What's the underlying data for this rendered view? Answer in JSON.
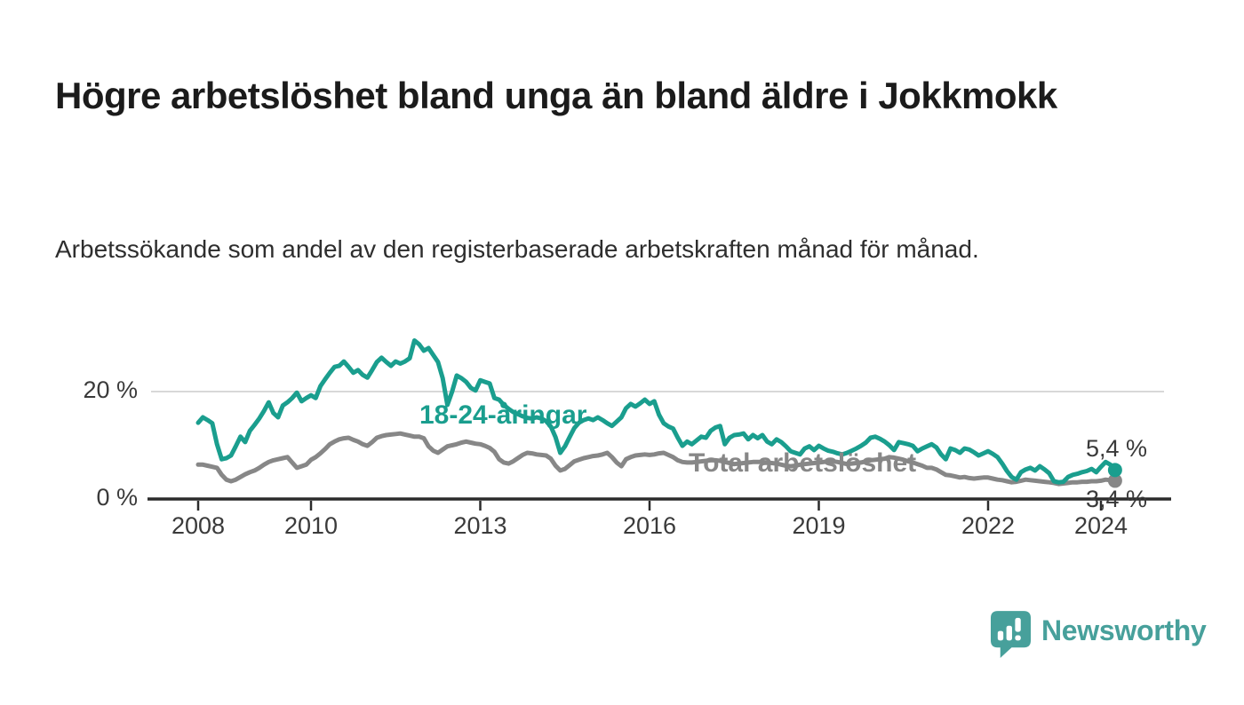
{
  "header": {
    "title": "Högre arbetslöshet bland unga än bland äldre i Jokkmokk",
    "subtitle": "Arbetssökande som andel av den registerbaserade arbetskraften månad för månad."
  },
  "chart_data": {
    "type": "line",
    "unit": "%",
    "x_start": "2008-01",
    "x_end": "2024-04",
    "points_per_year": 12,
    "ylim": [
      0,
      30
    ],
    "grid": "horizontal-at-20-only",
    "y_ticks": [
      {
        "value": 0,
        "label": "0 %"
      },
      {
        "value": 20,
        "label": "20 %"
      }
    ],
    "x_ticks": [
      {
        "year": 2008,
        "label": "2008"
      },
      {
        "year": 2010,
        "label": "2010"
      },
      {
        "year": 2013,
        "label": "2013"
      },
      {
        "year": 2016,
        "label": "2016"
      },
      {
        "year": 2019,
        "label": "2019"
      },
      {
        "year": 2022,
        "label": "2022"
      },
      {
        "year": 2024,
        "label": "2024"
      }
    ],
    "series": [
      {
        "name": "Total arbetslöshet",
        "color": "#878787",
        "end_label": "3,4 %",
        "values": [
          6.4,
          6.4,
          6.2,
          6.0,
          5.8,
          4.5,
          3.6,
          3.3,
          3.6,
          4.1,
          4.6,
          5.0,
          5.3,
          5.8,
          6.4,
          6.9,
          7.2,
          7.4,
          7.6,
          7.8,
          6.8,
          5.8,
          6.1,
          6.4,
          7.3,
          7.8,
          8.5,
          9.3,
          10.2,
          10.7,
          11.1,
          11.3,
          11.4,
          11.0,
          10.7,
          10.2,
          9.9,
          10.6,
          11.4,
          11.7,
          11.9,
          12.0,
          12.1,
          12.2,
          12.0,
          11.8,
          11.6,
          11.6,
          11.3,
          9.8,
          9.0,
          8.6,
          9.2,
          9.8,
          10.0,
          10.2,
          10.5,
          10.7,
          10.5,
          10.3,
          10.2,
          9.9,
          9.5,
          8.8,
          7.4,
          6.8,
          6.6,
          7.0,
          7.6,
          8.2,
          8.6,
          8.5,
          8.3,
          8.2,
          8.1,
          7.5,
          6.2,
          5.3,
          5.6,
          6.3,
          7.0,
          7.3,
          7.6,
          7.8,
          8.0,
          8.1,
          8.3,
          8.6,
          7.8,
          6.8,
          6.1,
          7.4,
          7.8,
          8.1,
          8.2,
          8.3,
          8.2,
          8.3,
          8.5,
          8.6,
          8.2,
          7.8,
          7.2,
          6.9,
          6.8,
          6.8,
          6.9,
          7.0,
          7.1,
          7.2,
          7.2,
          7.1,
          6.9,
          6.7,
          6.5,
          6.6,
          6.7,
          6.8,
          6.9,
          6.9,
          6.9,
          6.8,
          6.7,
          6.6,
          6.4,
          6.2,
          6.1,
          6.2,
          6.4,
          6.5,
          6.6,
          6.7,
          6.8,
          6.9,
          7.0,
          7.0,
          6.9,
          6.7,
          6.5,
          6.6,
          6.7,
          6.8,
          7.0,
          7.2,
          7.3,
          7.4,
          7.5,
          7.8,
          7.7,
          7.5,
          7.3,
          7.0,
          6.8,
          6.5,
          6.2,
          5.8,
          5.8,
          5.5,
          5.0,
          4.5,
          4.4,
          4.2,
          4.0,
          4.1,
          3.9,
          3.8,
          3.9,
          4.0,
          4.0,
          3.8,
          3.6,
          3.5,
          3.3,
          3.1,
          3.2,
          3.4,
          3.6,
          3.5,
          3.4,
          3.3,
          3.2,
          3.1,
          3.0,
          2.8,
          2.9,
          3.0,
          3.1,
          3.1,
          3.2,
          3.2,
          3.3,
          3.3,
          3.4,
          3.6,
          3.5,
          3.4
        ]
      },
      {
        "name": "18-24-åringar",
        "color": "#1A9E8E",
        "end_label": "5,4 %",
        "values": [
          14.2,
          15.2,
          14.7,
          14.1,
          10.2,
          7.4,
          7.6,
          8.1,
          9.8,
          11.6,
          10.6,
          12.7,
          13.8,
          15.0,
          16.4,
          18.0,
          16.0,
          15.2,
          17.4,
          18.0,
          18.8,
          19.8,
          18.2,
          18.8,
          19.3,
          18.8,
          21.0,
          22.3,
          23.5,
          24.6,
          24.8,
          25.6,
          24.6,
          23.5,
          24.0,
          23.1,
          22.6,
          24.0,
          25.5,
          26.3,
          25.5,
          24.8,
          25.6,
          25.2,
          25.6,
          26.2,
          29.5,
          28.8,
          27.6,
          28.1,
          26.8,
          25.5,
          22.5,
          17.5,
          20.0,
          23.0,
          22.5,
          21.8,
          20.7,
          20.2,
          22.1,
          21.8,
          21.5,
          18.8,
          18.5,
          17.5,
          16.8,
          16.2,
          15.8,
          15.4,
          15.1,
          15.0,
          15.2,
          15.0,
          14.5,
          13.5,
          11.5,
          8.6,
          9.8,
          11.5,
          13.2,
          14.2,
          14.7,
          15.0,
          14.7,
          15.2,
          14.7,
          14.1,
          13.6,
          14.4,
          15.2,
          16.9,
          17.7,
          17.2,
          17.8,
          18.5,
          17.7,
          18.2,
          15.7,
          14.1,
          13.5,
          13.1,
          11.4,
          9.9,
          10.7,
          10.2,
          10.9,
          11.6,
          11.4,
          12.7,
          13.3,
          13.6,
          10.2,
          11.4,
          11.9,
          12.0,
          12.2,
          11.1,
          11.9,
          11.3,
          11.9,
          10.7,
          10.2,
          11.1,
          10.6,
          9.8,
          8.9,
          8.6,
          8.3,
          9.4,
          9.8,
          9.1,
          9.9,
          9.4,
          9.0,
          8.8,
          8.5,
          8.3,
          8.6,
          9.0,
          9.4,
          9.9,
          10.5,
          11.4,
          11.6,
          11.2,
          10.7,
          10.0,
          9.1,
          10.6,
          10.4,
          10.2,
          9.9,
          8.9,
          9.4,
          9.8,
          10.2,
          9.6,
          8.3,
          7.4,
          9.4,
          9.1,
          8.6,
          9.4,
          9.2,
          8.7,
          8.1,
          8.5,
          8.9,
          8.4,
          7.8,
          6.6,
          5.2,
          4.1,
          3.6,
          5.0,
          5.5,
          5.8,
          5.3,
          6.1,
          5.5,
          4.8,
          3.3,
          3.1,
          3.2,
          4.1,
          4.5,
          4.7,
          5.0,
          5.2,
          5.6,
          5.0,
          6.0,
          6.9,
          6.4,
          5.4
        ]
      }
    ]
  },
  "branding": {
    "name": "Newsworthy",
    "color": "#47A09B",
    "icon": "newsworthy-bubble-barchart-icon"
  }
}
